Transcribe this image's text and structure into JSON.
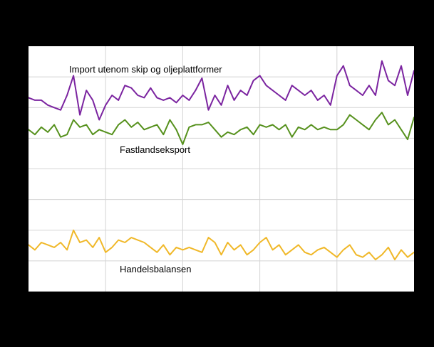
{
  "colors": {
    "page_background": "#000000",
    "plot_background": "#ffffff",
    "grid": "#d4d4d4",
    "label_text": "#000000"
  },
  "chart_data": {
    "type": "line",
    "title": "",
    "xlabel": "",
    "ylabel": "",
    "ylim": [
      0,
      100
    ],
    "grid": true,
    "grid_cols": 5,
    "grid_rows": 8,
    "legend_position": "inline-labels",
    "x": [
      0,
      1,
      2,
      3,
      4,
      5,
      6,
      7,
      8,
      9,
      10,
      11,
      12,
      13,
      14,
      15,
      16,
      17,
      18,
      19,
      20,
      21,
      22,
      23,
      24,
      25,
      26,
      27,
      28,
      29,
      30,
      31,
      32,
      33,
      34,
      35,
      36,
      37,
      38,
      39,
      40,
      41,
      42,
      43,
      44,
      45,
      46,
      47,
      48,
      49,
      50,
      51,
      52,
      53,
      54,
      55,
      56,
      57,
      58,
      59,
      60
    ],
    "series": [
      {
        "name": "Import utenom skip og oljeplattformer",
        "color": "#7b24a0",
        "values": [
          79,
          78,
          78,
          76,
          75,
          74,
          80,
          88,
          72,
          82,
          78,
          70,
          76,
          80,
          78,
          84,
          83,
          80,
          79,
          83,
          79,
          78,
          79,
          77,
          80,
          78,
          82,
          87,
          74,
          80,
          76,
          84,
          78,
          82,
          80,
          86,
          88,
          84,
          82,
          80,
          78,
          84,
          82,
          80,
          82,
          78,
          80,
          76,
          88,
          92,
          84,
          82,
          80,
          84,
          80,
          94,
          86,
          84,
          92,
          80,
          90
        ]
      },
      {
        "name": "Fastlandseksport",
        "color": "#56911d",
        "values": [
          66,
          64,
          67,
          65,
          68,
          63,
          64,
          70,
          67,
          68,
          64,
          66,
          65,
          64,
          68,
          70,
          67,
          69,
          66,
          67,
          68,
          64,
          70,
          66,
          60,
          67,
          68,
          68,
          69,
          66,
          63,
          65,
          64,
          66,
          67,
          64,
          68,
          67,
          68,
          66,
          68,
          63,
          67,
          66,
          68,
          66,
          67,
          66,
          66,
          68,
          72,
          70,
          68,
          66,
          70,
          73,
          68,
          70,
          66,
          62,
          71
        ]
      },
      {
        "name": "Handelsbalansen",
        "color": "#f0b829",
        "values": [
          19,
          17,
          20,
          19,
          18,
          20,
          17,
          25,
          20,
          21,
          18,
          22,
          16,
          18,
          21,
          20,
          22,
          21,
          20,
          18,
          16,
          19,
          15,
          18,
          17,
          18,
          17,
          16,
          22,
          20,
          15,
          20,
          17,
          19,
          15,
          17,
          20,
          22,
          17,
          19,
          15,
          17,
          19,
          16,
          15,
          17,
          18,
          16,
          14,
          17,
          19,
          15,
          14,
          16,
          13,
          15,
          18,
          13,
          17,
          14,
          16
        ]
      }
    ]
  }
}
